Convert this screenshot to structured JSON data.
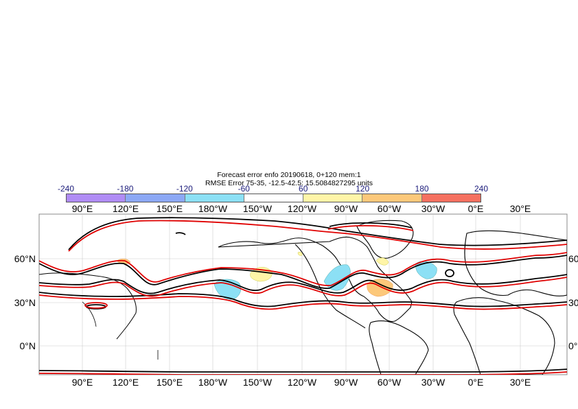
{
  "title": {
    "line1": "Forecast error  enfo 20190618, 0+120 mem:1",
    "line2": "RMSE Error 75-35, -12.5-42.5: 15.5084827295 units"
  },
  "colorbar": {
    "ticks": [
      "-240",
      "-180",
      "-120",
      "-60",
      "60",
      "120",
      "180",
      "240"
    ],
    "colors": [
      "#b08cf5",
      "#8ca8f5",
      "#8ce0f5",
      "#ffffff",
      "#fff5a8",
      "#fcc87a",
      "#f57060"
    ]
  },
  "map": {
    "lon_labels_top": [
      "90°E",
      "120°E",
      "150°E",
      "180°W",
      "150°W",
      "120°W",
      "90°W",
      "60°W",
      "30°W",
      "0°E",
      "30°E"
    ],
    "lon_labels_bottom": [
      "90°E",
      "120°E",
      "150°E",
      "180°W",
      "150°W",
      "120°W",
      "90°W",
      "60°W",
      "30°W",
      "0°E",
      "30°E"
    ],
    "lat_labels_left": [
      "60°N",
      "30°N",
      "0°N"
    ],
    "lat_labels_right": [
      "60°",
      "30°",
      "0°"
    ],
    "contour_colors": {
      "forecast": "#000000",
      "analysis": "#e00000"
    }
  }
}
